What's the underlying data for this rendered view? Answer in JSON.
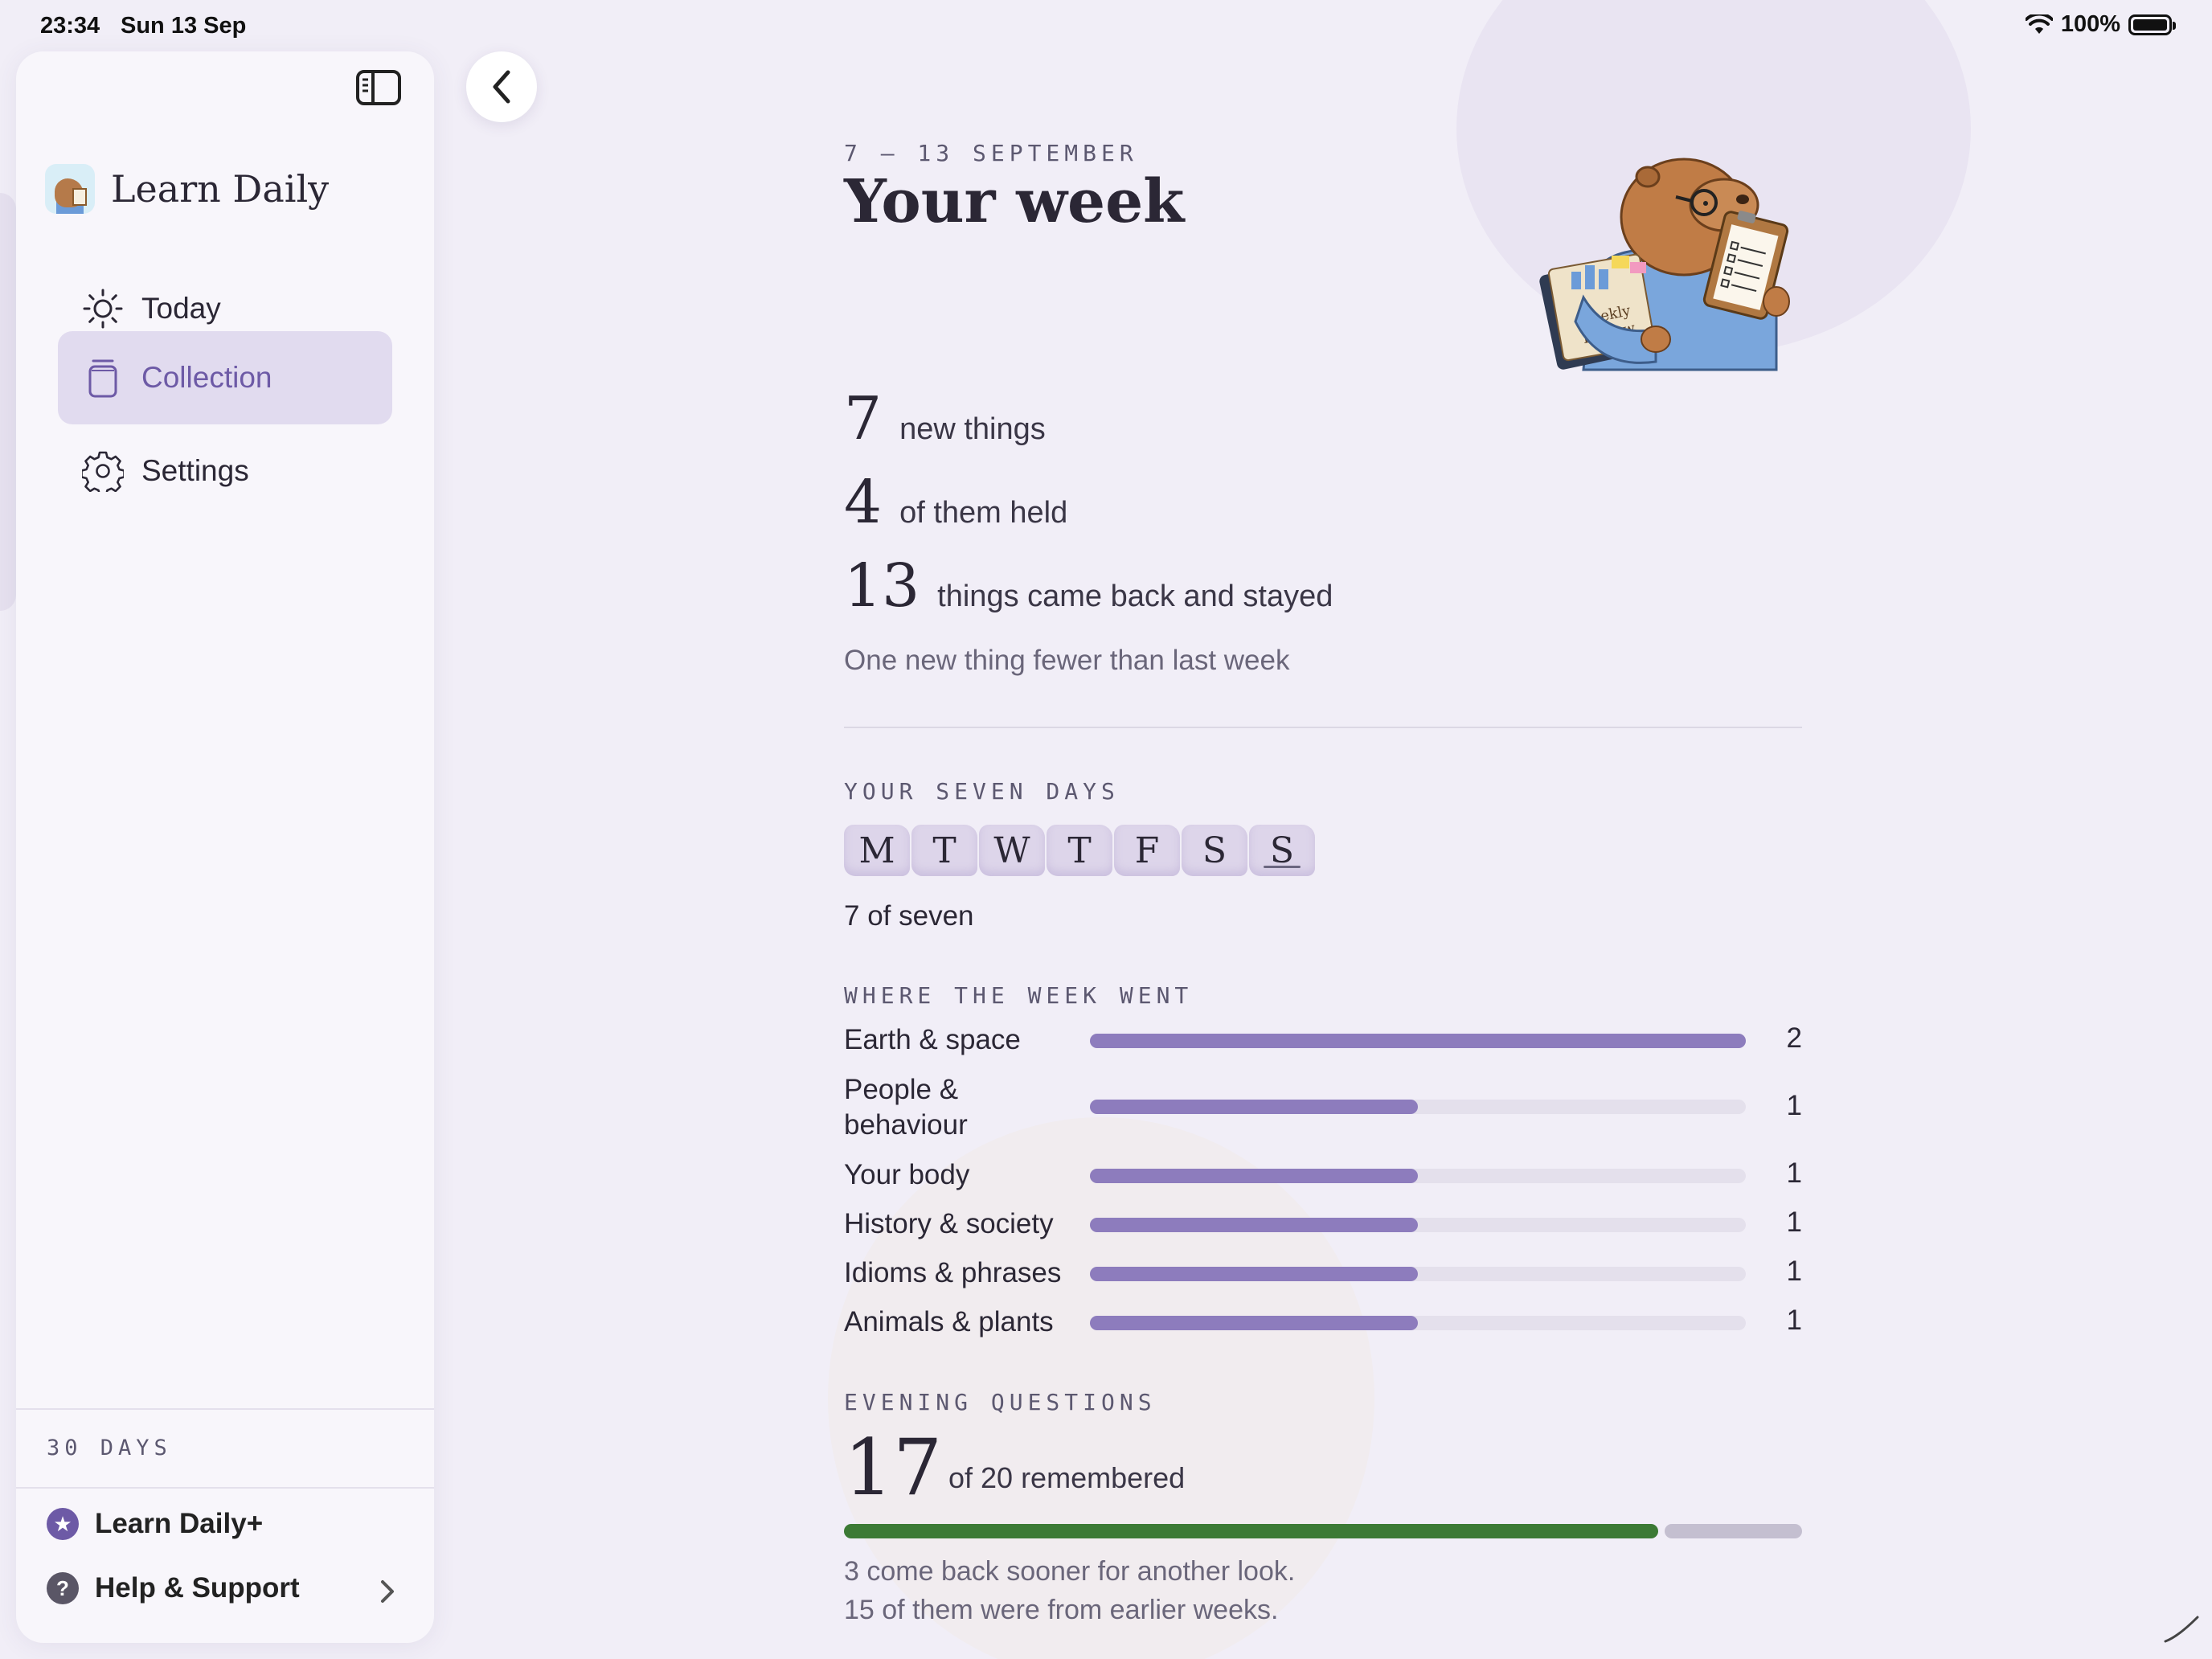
{
  "status_bar": {
    "time": "23:34",
    "date": "Sun 13 Sep",
    "battery": "100%"
  },
  "sidebar": {
    "app_name": "Learn Daily",
    "nav": [
      {
        "label": "Today",
        "icon": "sun-icon",
        "active": false
      },
      {
        "label": "Collection",
        "icon": "jar-icon",
        "active": true
      },
      {
        "label": "Settings",
        "icon": "gear-icon",
        "active": false
      }
    ],
    "days_label": "30 DAYS",
    "footer": [
      {
        "label": "Learn Daily+",
        "icon": "star-icon"
      },
      {
        "label": "Help & Support",
        "icon": "question-icon"
      }
    ]
  },
  "week": {
    "date_range": "7 – 13 SEPTEMBER",
    "title": "Your week",
    "stats": [
      {
        "value": "7",
        "label": "new things"
      },
      {
        "value": "4",
        "label": "of them held"
      },
      {
        "value": "13",
        "label": "things came back and stayed"
      }
    ],
    "comparison": "One new thing fewer than last week"
  },
  "seven_days": {
    "label": "YOUR SEVEN DAYS",
    "days": [
      "M",
      "T",
      "W",
      "T",
      "F",
      "S",
      "S"
    ],
    "summary": "7 of seven"
  },
  "topics": {
    "label": "WHERE THE WEEK WENT",
    "max": 2,
    "items": [
      {
        "name": "Earth & space",
        "count": "2",
        "value": 2
      },
      {
        "name": "People & behaviour",
        "count": "1",
        "value": 1
      },
      {
        "name": "Your body",
        "count": "1",
        "value": 1
      },
      {
        "name": "History & society",
        "count": "1",
        "value": 1
      },
      {
        "name": "Idioms & phrases",
        "count": "1",
        "value": 1
      },
      {
        "name": "Animals & plants",
        "count": "1",
        "value": 1
      }
    ]
  },
  "evening": {
    "label": "EVENING QUESTIONS",
    "remembered": "17",
    "remembered_text": "of 20 remembered",
    "ratio": 0.85,
    "note_1": "3 come back sooner for another look.",
    "note_2": "15 of them were from earlier weeks."
  },
  "colors": {
    "accent": "#8d7cbd",
    "success": "#3c7a35",
    "background": "#f1eef7"
  }
}
